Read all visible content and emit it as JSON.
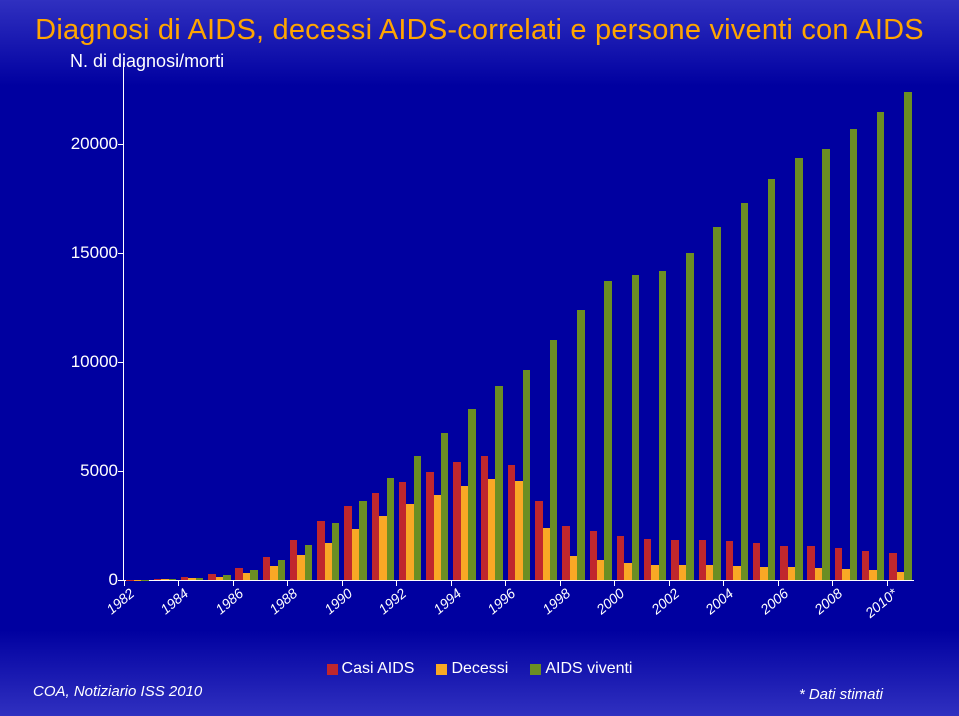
{
  "title": "Diagnosi di AIDS, decessi AIDS-correlati e persone viventi con AIDS",
  "ylabel": "N. di diagnosi/morti",
  "chart": {
    "type": "bar",
    "background_gradient": [
      "#3030c0",
      "#0000a0",
      "#0000a0",
      "#3030c0"
    ],
    "axis_color": "#ffffff",
    "title_color": "#ffa500",
    "title_fontsize": 29,
    "label_color": "#ffffff",
    "label_fontsize": 17,
    "ylim": [
      0,
      22500
    ],
    "yticks": [
      0,
      5000,
      10000,
      15000,
      20000
    ],
    "xtick_step": 2,
    "xtick_rotation": -40,
    "years": [
      1982,
      1983,
      1984,
      1985,
      1986,
      1987,
      1988,
      1989,
      1990,
      1991,
      1992,
      1993,
      1994,
      1995,
      1996,
      1997,
      1998,
      1999,
      2000,
      2001,
      2002,
      2003,
      2004,
      2005,
      2006,
      2007,
      2008,
      2009,
      2010
    ],
    "last_year_label": "2010*",
    "series": [
      {
        "name": "Casi AIDS",
        "color": "#c0272d",
        "values": [
          10,
          60,
          150,
          280,
          550,
          1050,
          1850,
          2700,
          3400,
          4000,
          4500,
          4950,
          5400,
          5700,
          5300,
          3650,
          2500,
          2250,
          2000,
          1900,
          1850,
          1850,
          1800,
          1700,
          1550,
          1550,
          1450,
          1350,
          1250
        ]
      },
      {
        "name": "Decessi",
        "color": "#f9a825",
        "values": [
          5,
          30,
          80,
          150,
          320,
          650,
          1150,
          1700,
          2350,
          2950,
          3500,
          3900,
          4300,
          4650,
          4550,
          2400,
          1100,
          900,
          800,
          700,
          700,
          680,
          650,
          620,
          600,
          550,
          520,
          480,
          350
        ]
      },
      {
        "name": "AIDS viventi",
        "color": "#6b8e23",
        "values": [
          8,
          40,
          110,
          240,
          480,
          900,
          1600,
          2600,
          3650,
          4700,
          5700,
          6750,
          7850,
          8900,
          9650,
          11000,
          12400,
          13750,
          14000,
          14200,
          15000,
          16200,
          17300,
          18400,
          19400,
          19800,
          20700,
          21500,
          22400
        ]
      }
    ],
    "bar_cluster_width": 0.82,
    "bar_gap": 0
  },
  "legend": [
    {
      "label": "Casi AIDS",
      "swatch": "#c0272d"
    },
    {
      "label": "Decessi",
      "swatch": "#f9a825"
    },
    {
      "label": "AIDS viventi",
      "swatch": "#6b8e23"
    }
  ],
  "source": "COA, Notiziario ISS 2010",
  "footnote": "* Dati stimati"
}
